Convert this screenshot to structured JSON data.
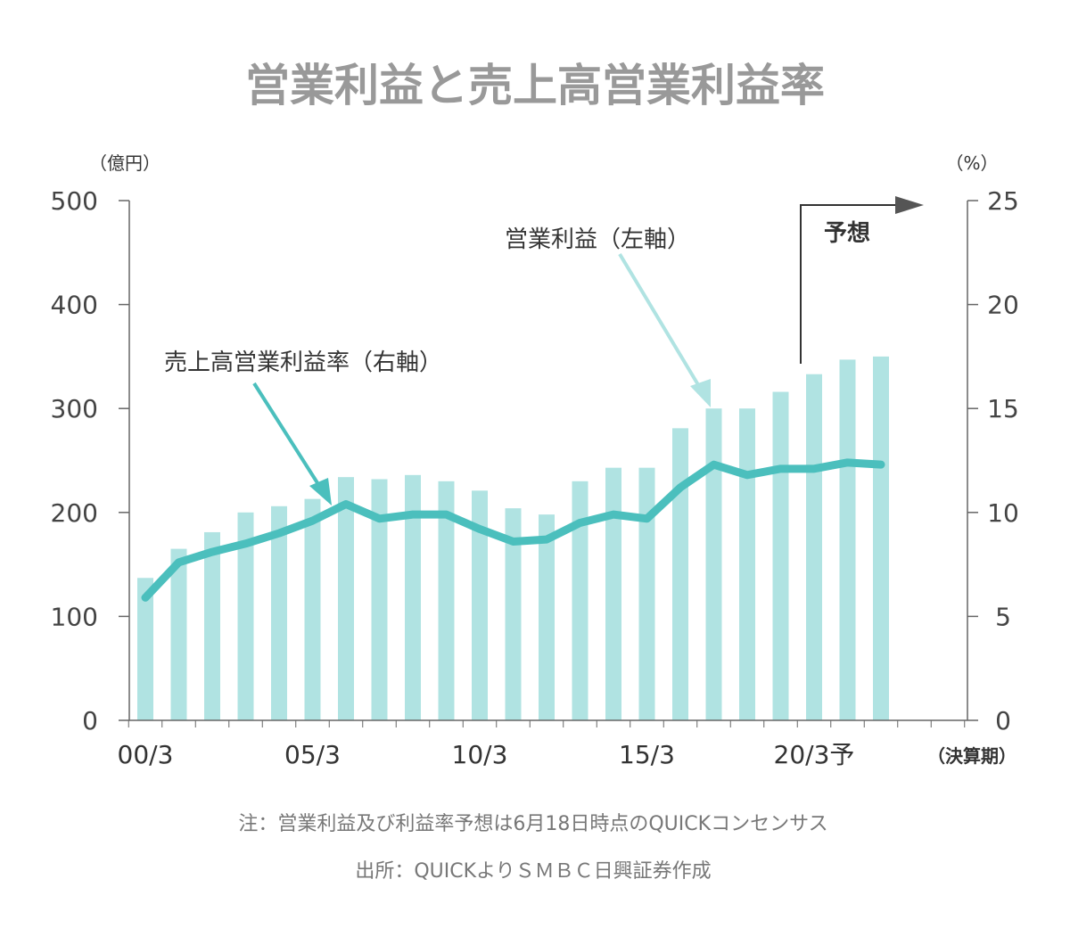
{
  "chart_data": {
    "type": "bar+line",
    "title": "営業利益と売上高営業利益率",
    "left_axis_unit": "（億円）",
    "right_axis_unit": "（%）",
    "x_unit": "（決算期）",
    "left_ylim": [
      0,
      500
    ],
    "left_ticks": [
      0,
      100,
      200,
      300,
      400,
      500
    ],
    "right_ylim": [
      0,
      25
    ],
    "right_ticks": [
      0,
      5,
      10,
      15,
      20,
      25
    ],
    "categories": [
      "00/3",
      "01/3",
      "02/3",
      "03/3",
      "04/3",
      "05/3",
      "06/3",
      "07/3",
      "08/3",
      "09/3",
      "10/3",
      "11/3",
      "12/3",
      "13/3",
      "14/3",
      "15/3",
      "16/3",
      "17/3",
      "18/3",
      "19/3",
      "20/3",
      "21/3",
      "22/3"
    ],
    "tick_labels": [
      {
        "index": 0,
        "label": "00/3"
      },
      {
        "index": 5,
        "label": "05/3"
      },
      {
        "index": 10,
        "label": "10/3"
      },
      {
        "index": 15,
        "label": "15/3"
      },
      {
        "index": 20,
        "label": "20/3予"
      }
    ],
    "series": [
      {
        "name": "営業利益（左軸）",
        "type": "bar",
        "axis": "left",
        "color": "#b0e3e2",
        "values": [
          137,
          165,
          181,
          200,
          206,
          213,
          234,
          232,
          236,
          230,
          221,
          204,
          198,
          230,
          243,
          243,
          281,
          300,
          300,
          316,
          333,
          347,
          350
        ]
      },
      {
        "name": "売上高営業利益率（右軸）",
        "type": "line",
        "axis": "right",
        "color": "#4bbfbd",
        "values": [
          5.9,
          7.6,
          8.1,
          8.5,
          9.0,
          9.6,
          10.4,
          9.7,
          9.9,
          9.9,
          9.2,
          8.6,
          8.7,
          9.5,
          9.9,
          9.7,
          11.2,
          12.3,
          11.8,
          12.1,
          12.1,
          12.4,
          12.3
        ]
      }
    ],
    "annotations": {
      "bar_label": "営業利益（左軸）",
      "line_label": "売上高営業利益率（右軸）",
      "forecast_label": "予想"
    },
    "grid": false
  },
  "notes": {
    "note": "注：営業利益及び利益率予想は6月18日時点のQUICKコンセンサス",
    "source": "出所：QUICKよりＳＭＢＣ日興証券作成"
  }
}
